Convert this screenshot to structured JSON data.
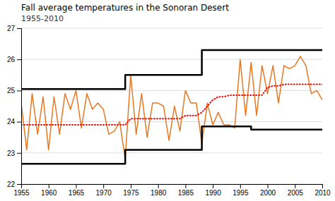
{
  "chart_data": {
    "type": "line",
    "title": "Fall average temperatures in the Sonoran Desert",
    "subtitle": "1955-2010",
    "xlim": [
      1955,
      2010
    ],
    "ylim": [
      22,
      27
    ],
    "yticks": [
      22,
      23,
      24,
      25,
      26,
      27
    ],
    "xticks": [
      1955,
      1960,
      1965,
      1970,
      1975,
      1980,
      1985,
      1990,
      1995,
      2000,
      2005,
      2010
    ],
    "grid": true,
    "series": [
      {
        "color": "#e87722",
        "line_style": "solid",
        "x": [
          1955,
          1956,
          1957,
          1958,
          1959,
          1960,
          1961,
          1962,
          1963,
          1964,
          1965,
          1966,
          1967,
          1968,
          1969,
          1970,
          1971,
          1972,
          1973,
          1974,
          1975,
          1976,
          1977,
          1978,
          1979,
          1980,
          1981,
          1982,
          1983,
          1984,
          1985,
          1986,
          1987,
          1988,
          1989,
          1990,
          1991,
          1992,
          1993,
          1994,
          1995,
          1996,
          1997,
          1998,
          1999,
          2000,
          2001,
          2002,
          2003,
          2004,
          2005,
          2006,
          2007,
          2008,
          2009,
          2010
        ],
        "values": [
          24.6,
          23.1,
          24.9,
          23.6,
          24.8,
          23.1,
          24.8,
          23.6,
          24.9,
          24.4,
          25.0,
          23.8,
          24.9,
          24.4,
          24.6,
          24.4,
          23.6,
          23.7,
          24.0,
          22.8,
          25.5,
          23.6,
          24.9,
          23.5,
          24.6,
          24.6,
          24.5,
          23.4,
          24.5,
          23.7,
          25.0,
          24.6,
          24.6,
          23.3,
          24.6,
          23.9,
          24.3,
          23.9,
          23.9,
          23.8,
          26.0,
          24.2,
          25.9,
          24.2,
          25.8,
          24.9,
          25.8,
          24.6,
          25.8,
          25.7,
          25.8,
          26.1,
          25.8,
          24.9,
          25.0,
          24.7
        ]
      },
      {
        "color": "#000000",
        "line_style": "solid",
        "x": [
          1955,
          1974,
          1974,
          1988,
          1988,
          2010
        ],
        "values": [
          25.05,
          25.05,
          25.5,
          25.5,
          26.3,
          26.3
        ]
      },
      {
        "color": "#000000",
        "line_style": "solid",
        "x": [
          1955,
          1974,
          1974,
          1988,
          1988,
          1997,
          1997,
          2010
        ],
        "values": [
          22.65,
          22.65,
          23.1,
          23.1,
          23.85,
          23.85,
          23.75,
          23.75
        ]
      },
      {
        "color": "#ff0000",
        "line_style": "dotted",
        "x": [
          1955,
          1956,
          1957,
          1958,
          1959,
          1960,
          1961,
          1962,
          1963,
          1964,
          1965,
          1966,
          1967,
          1968,
          1969,
          1970,
          1971,
          1972,
          1973,
          1974,
          1975,
          1976,
          1977,
          1978,
          1979,
          1980,
          1981,
          1982,
          1983,
          1984,
          1985,
          1986,
          1987,
          1988,
          1989,
          1990,
          1991,
          1992,
          1993,
          1994,
          1995,
          1996,
          1997,
          1998,
          1999,
          2000,
          2001,
          2002,
          2003,
          2004,
          2005,
          2006,
          2007,
          2008,
          2009,
          2010
        ],
        "values": [
          23.9,
          23.9,
          23.9,
          23.9,
          23.9,
          23.9,
          23.9,
          23.9,
          23.9,
          23.9,
          23.9,
          23.9,
          23.9,
          23.9,
          23.9,
          23.9,
          23.9,
          23.9,
          23.9,
          23.9,
          24.1,
          24.1,
          24.1,
          24.1,
          24.1,
          24.1,
          24.1,
          24.1,
          24.1,
          24.1,
          24.2,
          24.2,
          24.2,
          24.3,
          24.5,
          24.7,
          24.8,
          24.8,
          24.85,
          24.85,
          24.85,
          24.85,
          24.85,
          24.85,
          24.85,
          25.1,
          25.15,
          25.15,
          25.2,
          25.2,
          25.2,
          25.2,
          25.2,
          25.2,
          25.2,
          25.2
        ]
      }
    ]
  }
}
